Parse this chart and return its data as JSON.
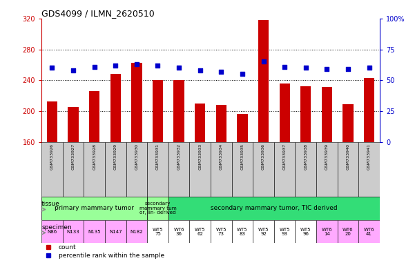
{
  "title": "GDS4099 / ILMN_2620510",
  "samples": [
    "GSM733926",
    "GSM733927",
    "GSM733928",
    "GSM733929",
    "GSM733930",
    "GSM733931",
    "GSM733932",
    "GSM733933",
    "GSM733934",
    "GSM733935",
    "GSM733936",
    "GSM733937",
    "GSM733938",
    "GSM733939",
    "GSM733940",
    "GSM733941"
  ],
  "counts": [
    212,
    205,
    226,
    248,
    263,
    240,
    240,
    210,
    208,
    196,
    318,
    236,
    232,
    231,
    209,
    243
  ],
  "percentile_ranks": [
    60,
    58,
    61,
    62,
    63,
    62,
    60,
    58,
    57,
    55,
    65,
    61,
    60,
    59,
    59,
    60
  ],
  "ylim_left": [
    160,
    320
  ],
  "ylim_right": [
    0,
    100
  ],
  "yticks_left": [
    160,
    200,
    240,
    280,
    320
  ],
  "yticks_right": [
    0,
    25,
    50,
    75,
    100
  ],
  "bar_color": "#cc0000",
  "dot_color": "#0000cc",
  "tissue_groups": [
    {
      "label": "primary mammary tumor",
      "cols": [
        0,
        1,
        2,
        3,
        4
      ],
      "color": "#99ff99"
    },
    {
      "label": "secondary\nmammary tum\nor, lin- derived",
      "cols": [
        5
      ],
      "color": "#99ff99"
    },
    {
      "label": "secondary mammary tumor, TIC derived",
      "cols": [
        6,
        7,
        8,
        9,
        10,
        11,
        12,
        13,
        14,
        15
      ],
      "color": "#33dd77"
    }
  ],
  "specimen_labels": [
    "N86",
    "N133",
    "N135",
    "N147",
    "N182",
    "WT5\n75",
    "WT6\n36",
    "WT5\n62",
    "WT5\n73",
    "WT5\n83",
    "WT5\n92",
    "WT5\n93",
    "WT5\n96",
    "WT6\n14",
    "WT6\n20",
    "WT6\n41"
  ],
  "specimen_colors": [
    "#ffaaff",
    "#ffaaff",
    "#ffaaff",
    "#ffaaff",
    "#ffaaff",
    "#ffffff",
    "#ffffff",
    "#ffffff",
    "#ffffff",
    "#ffffff",
    "#ffffff",
    "#ffffff",
    "#ffffff",
    "#ffaaff",
    "#ffaaff",
    "#ffaaff"
  ],
  "left_axis_color": "#cc0000",
  "right_axis_color": "#0000cc",
  "grid_dotted_at": [
    200,
    240,
    280
  ],
  "bg_color": "#ffffff",
  "sample_box_color": "#cccccc",
  "legend_count_label": "count",
  "legend_pct_label": "percentile rank within the sample",
  "tissue_row_label": "tissue",
  "specimen_row_label": "specimen",
  "label_arrow_color": "#888888"
}
